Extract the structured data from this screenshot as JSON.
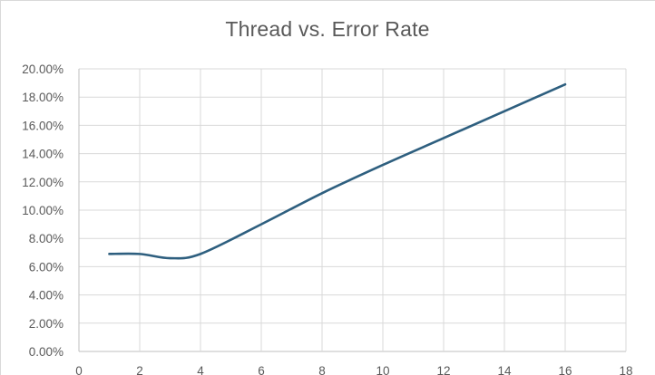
{
  "chart_data": {
    "type": "line",
    "title": "Thread vs. Error Rate",
    "xlabel": "",
    "ylabel": "",
    "xlim": [
      0,
      18
    ],
    "ylim": [
      0,
      0.2
    ],
    "grid": true,
    "legend": "none",
    "x_ticks": [
      "0",
      "2",
      "4",
      "6",
      "8",
      "10",
      "12",
      "14",
      "16",
      "18"
    ],
    "y_ticks": [
      "0.00%",
      "2.00%",
      "4.00%",
      "6.00%",
      "8.00%",
      "10.00%",
      "12.00%",
      "14.00%",
      "16.00%",
      "18.00%",
      "20.00%"
    ],
    "series": [
      {
        "color": "#2e5f7f",
        "x": [
          1,
          2,
          3,
          4,
          6,
          8,
          10,
          12,
          14,
          16
        ],
        "y": [
          0.069,
          0.069,
          0.066,
          0.069,
          0.09,
          0.112,
          0.132,
          0.151,
          0.17,
          0.189
        ]
      }
    ]
  }
}
